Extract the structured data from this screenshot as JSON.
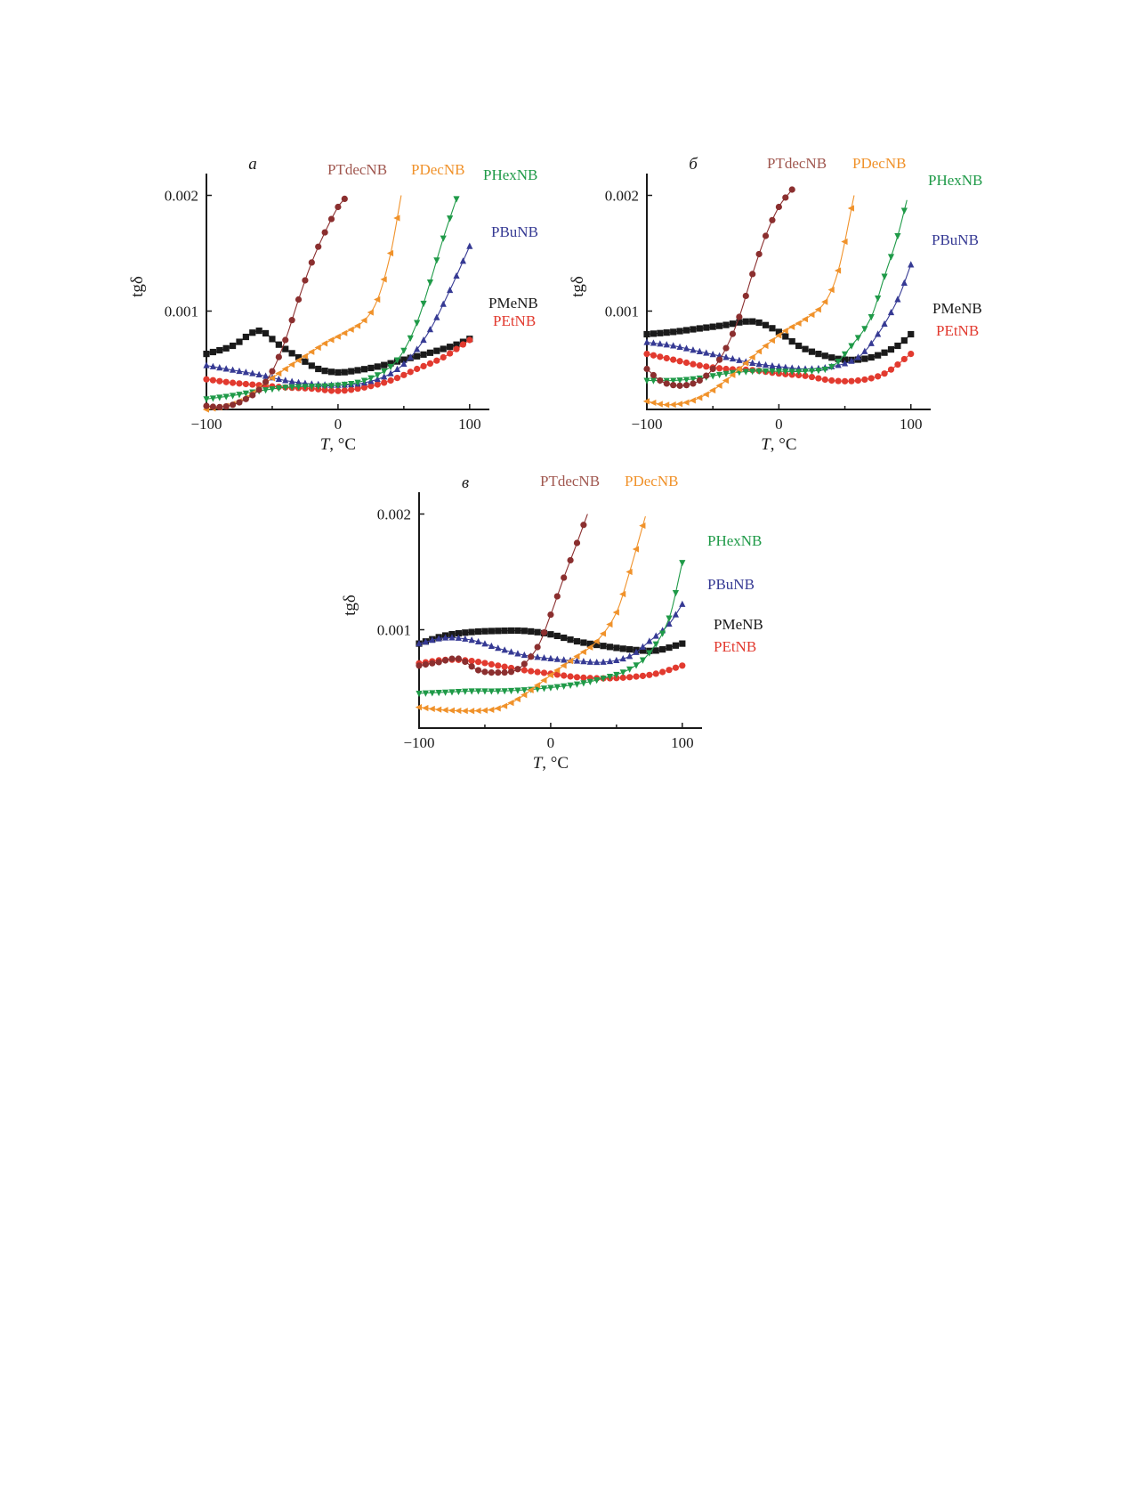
{
  "colors": {
    "PTdecNB": "#8b2f2f",
    "PDecNB": "#f0922b",
    "PHexNB": "#1f9a48",
    "PBuNB": "#363a94",
    "PMeNB": "#1a1a1a",
    "PEtNB": "#e23a2f"
  },
  "markers": {
    "PTdecNB": "circle",
    "PDecNB": "triangle-left",
    "PHexNB": "triangle-down",
    "PBuNB": "triangle-up",
    "PMeNB": "square",
    "PEtNB": "circle"
  },
  "label_colors": {
    "PTdecNB": "#a0574f",
    "PDecNB": "#f0922b",
    "PHexNB": "#1f9a48",
    "PBuNB": "#363a94",
    "PMeNB": "#1a1a1a",
    "PEtNB": "#e23a2f"
  },
  "chart_data": [
    {
      "type": "line",
      "panel_label": "а",
      "xlabel_var": "T",
      "xlabel_unit": ", °C",
      "ylabel": "tgδ",
      "xlim": [
        -100,
        115
      ],
      "ylim": [
        0.00015,
        0.00215
      ],
      "xticks": [
        -100,
        0,
        100
      ],
      "xtick_labels": [
        "−100",
        "0",
        "100"
      ],
      "yticks": [
        0.001,
        0.002
      ],
      "ytick_labels": [
        "0.001",
        "0.002"
      ],
      "series": [
        {
          "name": "PMeNB",
          "x": [
            -100,
            -80,
            -60,
            -45,
            -30,
            -15,
            0,
            10,
            30,
            50,
            70,
            90,
            100
          ],
          "y": [
            0.00063,
            0.0007,
            0.00083,
            0.00071,
            0.0006,
            0.0005,
            0.00047,
            0.00048,
            0.00052,
            0.00058,
            0.00064,
            0.00071,
            0.00076
          ]
        },
        {
          "name": "PEtNB",
          "x": [
            -100,
            -80,
            -60,
            -40,
            -20,
            0,
            20,
            40,
            60,
            80,
            100
          ],
          "y": [
            0.00041,
            0.00038,
            0.00036,
            0.00034,
            0.00033,
            0.00031,
            0.00034,
            0.0004,
            0.0005,
            0.0006,
            0.00075
          ]
        },
        {
          "name": "PBuNB",
          "x": [
            -100,
            -80,
            -60,
            -40,
            -20,
            0,
            20,
            40,
            55,
            70,
            85,
            100
          ],
          "y": [
            0.00053,
            0.00049,
            0.00045,
            0.0004,
            0.00037,
            0.00036,
            0.00038,
            0.00046,
            0.0006,
            0.00084,
            0.00118,
            0.00156
          ]
        },
        {
          "name": "PHexNB",
          "x": [
            -100,
            -80,
            -60,
            -40,
            -20,
            0,
            20,
            40,
            50,
            60,
            70,
            80,
            90
          ],
          "y": [
            0.00024,
            0.00027,
            0.00031,
            0.00034,
            0.00035,
            0.00036,
            0.0004,
            0.00052,
            0.00066,
            0.0009,
            0.00125,
            0.00163,
            0.00197
          ]
        },
        {
          "name": "PDecNB",
          "x": [
            -100,
            -85,
            -70,
            -55,
            -40,
            -25,
            -10,
            5,
            20,
            30,
            40,
            48
          ],
          "y": [
            0.00015,
            0.00018,
            0.00025,
            0.00038,
            0.0005,
            0.00061,
            0.00072,
            0.00081,
            0.00092,
            0.0011,
            0.0015,
            0.002
          ]
        },
        {
          "name": "PTdecNB",
          "x": [
            -100,
            -90,
            -80,
            -70,
            -60,
            -50,
            -40,
            -30,
            -20,
            -10,
            0,
            5
          ],
          "y": [
            0.00018,
            0.00017,
            0.00019,
            0.00024,
            0.00032,
            0.00048,
            0.00075,
            0.0011,
            0.00142,
            0.00168,
            0.0019,
            0.00197
          ]
        }
      ],
      "labels": [
        "PTdecNB",
        "PDecNB",
        "PHexNB",
        "PBuNB",
        "PMeNB",
        "PEtNB"
      ]
    },
    {
      "type": "line",
      "panel_label": "б",
      "xlabel_var": "T",
      "xlabel_unit": ", °C",
      "ylabel": "tgδ",
      "xlim": [
        -100,
        115
      ],
      "ylim": [
        0.00015,
        0.00215
      ],
      "xticks": [
        -100,
        0,
        100
      ],
      "xtick_labels": [
        "−100",
        "0",
        "100"
      ],
      "yticks": [
        0.001,
        0.002
      ],
      "ytick_labels": [
        "0.001",
        "0.002"
      ],
      "series": [
        {
          "name": "PMeNB",
          "x": [
            -100,
            -80,
            -60,
            -40,
            -25,
            -15,
            0,
            15,
            30,
            50,
            70,
            90,
            100
          ],
          "y": [
            0.0008,
            0.00082,
            0.00085,
            0.00088,
            0.00091,
            0.0009,
            0.00082,
            0.0007,
            0.00063,
            0.00058,
            0.0006,
            0.0007,
            0.0008
          ]
        },
        {
          "name": "PEtNB",
          "x": [
            -100,
            -80,
            -60,
            -40,
            -20,
            0,
            20,
            40,
            60,
            80,
            100
          ],
          "y": [
            0.00063,
            0.00058,
            0.00053,
            0.0005,
            0.00049,
            0.00046,
            0.00044,
            0.0004,
            0.0004,
            0.00046,
            0.00063
          ]
        },
        {
          "name": "PBuNB",
          "x": [
            -100,
            -80,
            -60,
            -40,
            -20,
            0,
            20,
            40,
            60,
            75,
            90,
            100
          ],
          "y": [
            0.00073,
            0.0007,
            0.00065,
            0.0006,
            0.00055,
            0.00052,
            0.0005,
            0.00052,
            0.0006,
            0.0008,
            0.0011,
            0.0014
          ]
        },
        {
          "name": "PHexNB",
          "x": [
            -100,
            -80,
            -60,
            -40,
            -20,
            0,
            20,
            40,
            55,
            70,
            80,
            90,
            97
          ],
          "y": [
            0.0004,
            0.0004,
            0.00042,
            0.00046,
            0.00048,
            0.00048,
            0.00048,
            0.00052,
            0.0007,
            0.00095,
            0.0013,
            0.00165,
            0.00196
          ]
        },
        {
          "name": "PDecNB",
          "x": [
            -100,
            -85,
            -70,
            -55,
            -40,
            -25,
            -10,
            5,
            20,
            35,
            45,
            57
          ],
          "y": [
            0.00022,
            0.00019,
            0.00021,
            0.00028,
            0.0004,
            0.00055,
            0.0007,
            0.00083,
            0.00093,
            0.00108,
            0.00135,
            0.002
          ]
        },
        {
          "name": "PTdecNB",
          "x": [
            -100,
            -90,
            -80,
            -70,
            -60,
            -50,
            -40,
            -30,
            -20,
            -10,
            0,
            10
          ],
          "y": [
            0.0005,
            0.0004,
            0.00036,
            0.00036,
            0.0004,
            0.0005,
            0.00068,
            0.00095,
            0.00132,
            0.00165,
            0.0019,
            0.00205
          ]
        }
      ],
      "labels": [
        "PTdecNB",
        "PDecNB",
        "PHexNB",
        "PBuNB",
        "PMeNB",
        "PEtNB"
      ]
    },
    {
      "type": "line",
      "panel_label": "в",
      "xlabel_var": "T",
      "xlabel_unit": ", °C",
      "ylabel": "tgδ",
      "xlim": [
        -100,
        115
      ],
      "ylim": [
        0.00015,
        0.00215
      ],
      "xticks": [
        -100,
        0,
        100
      ],
      "xtick_labels": [
        "−100",
        "0",
        "100"
      ],
      "yticks": [
        0.001,
        0.002
      ],
      "ytick_labels": [
        "0.001",
        "0.002"
      ],
      "series": [
        {
          "name": "PMeNB",
          "x": [
            -100,
            -80,
            -60,
            -40,
            -20,
            0,
            20,
            40,
            60,
            80,
            100
          ],
          "y": [
            0.00088,
            0.00095,
            0.00098,
            0.00099,
            0.00099,
            0.00096,
            0.0009,
            0.00086,
            0.00083,
            0.00082,
            0.00088
          ]
        },
        {
          "name": "PEtNB",
          "x": [
            -100,
            -80,
            -60,
            -40,
            -20,
            0,
            20,
            40,
            60,
            80,
            100
          ],
          "y": [
            0.00071,
            0.00074,
            0.00073,
            0.00069,
            0.00065,
            0.00062,
            0.00059,
            0.00058,
            0.00059,
            0.00062,
            0.00069
          ]
        },
        {
          "name": "PBuNB",
          "x": [
            -100,
            -80,
            -60,
            -40,
            -20,
            0,
            20,
            40,
            60,
            75,
            90,
            100
          ],
          "y": [
            0.00088,
            0.00093,
            0.00091,
            0.00084,
            0.00078,
            0.00075,
            0.00073,
            0.00072,
            0.00077,
            0.0009,
            0.00105,
            0.00122
          ]
        },
        {
          "name": "PHexNB",
          "x": [
            -100,
            -80,
            -60,
            -40,
            -20,
            0,
            20,
            40,
            60,
            75,
            90,
            100
          ],
          "y": [
            0.00045,
            0.00046,
            0.00047,
            0.00047,
            0.00048,
            0.0005,
            0.00053,
            0.00058,
            0.00066,
            0.0008,
            0.0011,
            0.00158
          ]
        },
        {
          "name": "PDecNB",
          "x": [
            -100,
            -85,
            -70,
            -55,
            -40,
            -25,
            -10,
            5,
            20,
            35,
            50,
            60,
            72
          ],
          "y": [
            0.00033,
            0.00031,
            0.0003,
            0.0003,
            0.00032,
            0.0004,
            0.00052,
            0.00065,
            0.00077,
            0.0009,
            0.00115,
            0.0015,
            0.00198
          ]
        },
        {
          "name": "PTdecNB",
          "x": [
            -100,
            -85,
            -70,
            -55,
            -40,
            -25,
            -10,
            0,
            10,
            20,
            28
          ],
          "y": [
            0.00069,
            0.00072,
            0.00075,
            0.00065,
            0.00063,
            0.00066,
            0.00085,
            0.00113,
            0.00145,
            0.00175,
            0.002
          ]
        }
      ],
      "labels": [
        "PTdecNB",
        "PDecNB",
        "PHexNB",
        "PBuNB",
        "PMeNB",
        "PEtNB"
      ]
    }
  ]
}
